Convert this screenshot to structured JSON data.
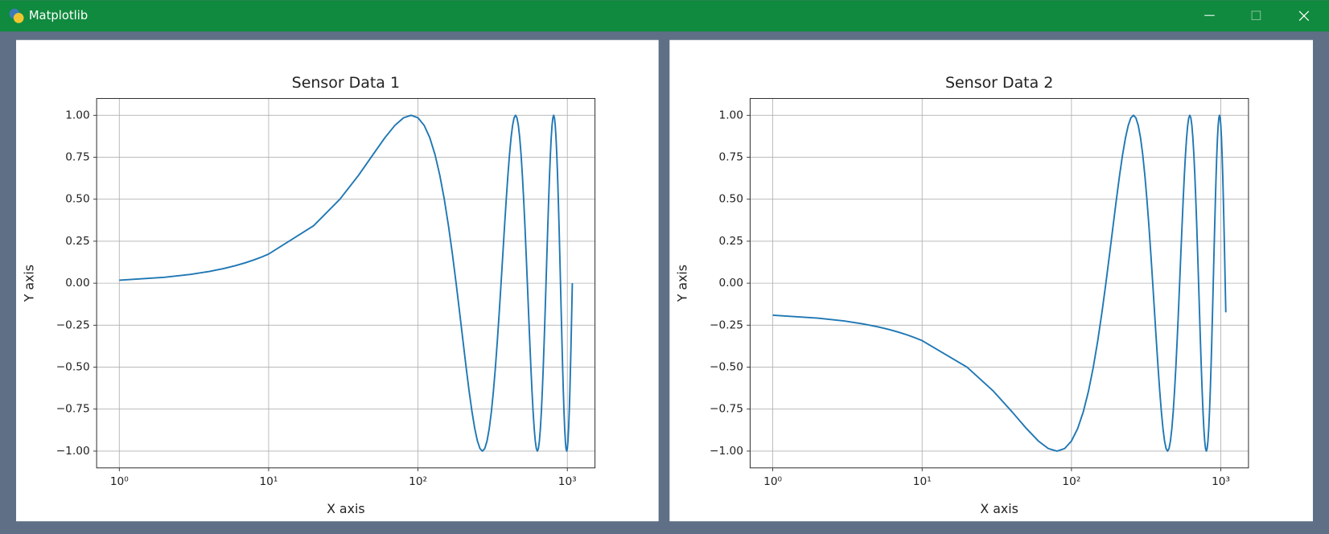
{
  "window": {
    "title": "Matplotlib"
  },
  "chart_data": [
    {
      "type": "line",
      "title": "Sensor Data 1",
      "x_label": "X axis",
      "y_label": "Y axis",
      "xscale": "log",
      "grid": true,
      "color": "#1f77b4",
      "x": [
        1,
        2,
        3,
        4,
        5,
        6,
        7,
        8,
        9,
        10,
        20,
        30,
        40,
        50,
        60,
        70,
        80,
        90,
        100,
        110,
        120,
        130,
        140,
        150,
        160,
        170,
        180,
        190,
        200,
        210,
        220,
        230,
        240,
        250,
        260,
        270,
        280,
        290,
        300,
        310,
        320,
        330,
        340,
        350,
        360,
        370,
        380,
        390,
        400,
        410,
        420,
        430,
        440,
        450,
        460,
        470,
        480,
        490,
        500,
        510,
        520,
        530,
        540,
        550,
        560,
        570,
        580,
        590,
        600,
        610,
        620,
        630,
        640,
        650,
        660,
        670,
        680,
        690,
        700,
        710,
        720,
        730,
        740,
        750,
        760,
        770,
        780,
        790,
        800,
        810,
        820,
        830,
        840,
        850,
        860,
        870,
        880,
        890,
        900,
        910,
        920,
        930,
        940,
        950,
        960,
        970,
        980,
        990,
        1000,
        1010,
        1020,
        1030,
        1040,
        1050,
        1060,
        1070,
        1080
      ],
      "values": [
        0.0175,
        0.0349,
        0.0523,
        0.0698,
        0.0872,
        0.1045,
        0.1219,
        0.1392,
        0.1564,
        0.1736,
        0.342,
        0.5,
        0.6428,
        0.766,
        0.866,
        0.9397,
        0.9848,
        1,
        0.9848,
        0.9397,
        0.866,
        0.766,
        0.6428,
        0.5,
        0.342,
        0.1736,
        0,
        -0.1736,
        -0.342,
        -0.5,
        -0.6428,
        -0.766,
        -0.866,
        -0.9397,
        -0.9848,
        -1,
        -0.9848,
        -0.9397,
        -0.866,
        -0.766,
        -0.6428,
        -0.5,
        -0.342,
        -0.1736,
        0,
        0.1736,
        0.342,
        0.5,
        0.6428,
        0.766,
        0.866,
        0.9397,
        0.9848,
        1,
        0.9848,
        0.9397,
        0.866,
        0.766,
        0.6428,
        0.5,
        0.342,
        0.1736,
        0,
        -0.1736,
        -0.342,
        -0.5,
        -0.6428,
        -0.766,
        -0.866,
        -0.9397,
        -0.9848,
        -1,
        -0.9848,
        -0.9397,
        -0.866,
        -0.766,
        -0.6428,
        -0.5,
        -0.342,
        -0.1736,
        0,
        0.1736,
        0.342,
        0.5,
        0.6428,
        0.766,
        0.866,
        0.9397,
        0.9848,
        1,
        0.9848,
        0.9397,
        0.866,
        0.766,
        0.6428,
        0.5,
        0.342,
        0.1736,
        0,
        -0.1736,
        -0.342,
        -0.5,
        -0.6428,
        -0.766,
        -0.866,
        -0.9397,
        -0.9848,
        -1,
        -0.9848,
        -0.9397,
        -0.866,
        -0.766,
        -0.6428,
        -0.5,
        -0.342,
        -0.1736,
        0
      ],
      "xlim": [
        0.705,
        1532
      ],
      "ylim": [
        -1.1,
        1.1
      ],
      "xticks": [
        {
          "value": 1,
          "label": "10⁰"
        },
        {
          "value": 10,
          "label": "10¹"
        },
        {
          "value": 100,
          "label": "10²"
        },
        {
          "value": 1000,
          "label": "10³"
        }
      ],
      "yticks": [
        {
          "value": -1,
          "label": "−1.00"
        },
        {
          "value": -0.75,
          "label": "−0.75"
        },
        {
          "value": -0.5,
          "label": "−0.50"
        },
        {
          "value": -0.25,
          "label": "−0.25"
        },
        {
          "value": 0,
          "label": "0.00"
        },
        {
          "value": 0.25,
          "label": "0.25"
        },
        {
          "value": 0.5,
          "label": "0.50"
        },
        {
          "value": 0.75,
          "label": "0.75"
        },
        {
          "value": 1,
          "label": "1.00"
        }
      ]
    },
    {
      "type": "line",
      "title": "Sensor Data 2",
      "x_label": "X axis",
      "y_label": "Y axis",
      "xscale": "log",
      "grid": true,
      "color": "#1f77b4",
      "x": [
        1,
        2,
        3,
        4,
        5,
        6,
        7,
        8,
        9,
        10,
        20,
        30,
        40,
        50,
        60,
        70,
        80,
        90,
        100,
        110,
        120,
        130,
        140,
        150,
        160,
        170,
        180,
        190,
        200,
        210,
        220,
        230,
        240,
        250,
        260,
        270,
        280,
        290,
        300,
        310,
        320,
        330,
        340,
        350,
        360,
        370,
        380,
        390,
        400,
        410,
        420,
        430,
        440,
        450,
        460,
        470,
        480,
        490,
        500,
        510,
        520,
        530,
        540,
        550,
        560,
        570,
        580,
        590,
        600,
        610,
        620,
        630,
        640,
        650,
        660,
        670,
        680,
        690,
        700,
        710,
        720,
        730,
        740,
        750,
        760,
        770,
        780,
        790,
        800,
        810,
        820,
        830,
        840,
        850,
        860,
        870,
        880,
        890,
        900,
        910,
        920,
        930,
        940,
        950,
        960,
        970,
        980,
        990,
        1000,
        1010,
        1020,
        1030,
        1040,
        1050,
        1060,
        1070,
        1080
      ],
      "values": [
        -0.1908,
        -0.2079,
        -0.225,
        -0.2419,
        -0.2588,
        -0.2756,
        -0.2924,
        -0.309,
        -0.3256,
        -0.342,
        -0.5,
        -0.6428,
        -0.766,
        -0.866,
        -0.9397,
        -0.9848,
        -1,
        -0.9848,
        -0.9397,
        -0.866,
        -0.766,
        -0.6428,
        -0.5,
        -0.342,
        -0.1736,
        0,
        0.1736,
        0.342,
        0.5,
        0.6428,
        0.766,
        0.866,
        0.9397,
        0.9848,
        1,
        0.9848,
        0.9397,
        0.866,
        0.766,
        0.6428,
        0.5,
        0.342,
        0.1736,
        0,
        -0.1736,
        -0.342,
        -0.5,
        -0.6428,
        -0.766,
        -0.866,
        -0.9397,
        -0.9848,
        -1,
        -0.9848,
        -0.9397,
        -0.866,
        -0.766,
        -0.6428,
        -0.5,
        -0.342,
        -0.1736,
        0,
        0.1736,
        0.342,
        0.5,
        0.6428,
        0.766,
        0.866,
        0.9397,
        0.9848,
        1,
        0.9848,
        0.9397,
        0.866,
        0.766,
        0.6428,
        0.5,
        0.342,
        0.1736,
        0,
        -0.1736,
        -0.342,
        -0.5,
        -0.6428,
        -0.766,
        -0.866,
        -0.9397,
        -0.9848,
        -1,
        -0.9848,
        -0.9397,
        -0.866,
        -0.766,
        -0.6428,
        -0.5,
        -0.342,
        -0.1736,
        0,
        0.1736,
        0.342,
        0.5,
        0.6428,
        0.766,
        0.866,
        0.9397,
        0.9848,
        1,
        0.9848,
        0.9397,
        0.866,
        0.766,
        0.6428,
        0.5,
        0.342,
        0.1736,
        0,
        -0.1736
      ],
      "xlim": [
        0.705,
        1532
      ],
      "ylim": [
        -1.1,
        1.1
      ],
      "xticks": [
        {
          "value": 1,
          "label": "10⁰"
        },
        {
          "value": 10,
          "label": "10¹"
        },
        {
          "value": 100,
          "label": "10²"
        },
        {
          "value": 1000,
          "label": "10³"
        }
      ],
      "yticks": [
        {
          "value": -1,
          "label": "−1.00"
        },
        {
          "value": -0.75,
          "label": "−0.75"
        },
        {
          "value": -0.5,
          "label": "−0.50"
        },
        {
          "value": -0.25,
          "label": "−0.25"
        },
        {
          "value": 0,
          "label": "0.00"
        },
        {
          "value": 0.25,
          "label": "0.25"
        },
        {
          "value": 0.5,
          "label": "0.50"
        },
        {
          "value": 0.75,
          "label": "0.75"
        },
        {
          "value": 1,
          "label": "1.00"
        }
      ]
    }
  ]
}
